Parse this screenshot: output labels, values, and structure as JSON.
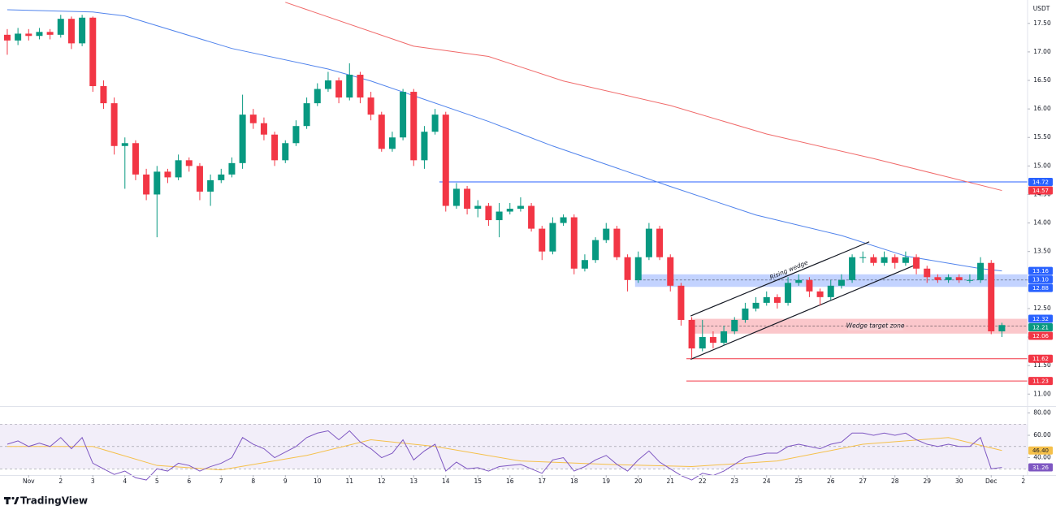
{
  "header": {
    "currency": "USDT"
  },
  "chart_data": [
    {
      "type": "candlestick",
      "open": [
        17.3,
        17.2,
        17.32,
        17.28,
        17.35,
        17.3,
        17.58,
        17.15,
        17.6,
        16.4,
        16.1,
        15.35,
        15.4,
        14.85,
        14.5,
        14.9,
        14.8,
        15.1,
        15.0,
        14.55,
        14.75,
        14.85,
        15.05,
        15.9,
        15.75,
        15.55,
        15.1,
        15.4,
        15.7,
        16.1,
        16.35,
        16.5,
        16.2,
        16.6,
        16.2,
        15.9,
        15.3,
        15.5,
        16.3,
        15.1,
        15.6,
        15.9,
        14.3,
        14.6,
        14.25,
        14.3,
        14.05,
        14.2,
        14.25,
        14.3,
        13.9,
        13.5,
        14.0,
        14.1,
        13.2,
        13.35,
        13.7,
        13.9,
        13.4,
        13.0,
        13.4,
        13.9,
        13.4,
        12.9,
        12.3,
        11.8,
        12.0,
        11.9,
        12.1,
        12.3,
        12.5,
        12.6,
        12.7,
        12.6,
        12.95,
        13.0,
        12.8,
        12.7,
        12.9,
        13.0,
        13.4,
        13.4,
        13.3,
        13.4,
        13.3,
        13.4,
        13.2,
        13.05,
        13.0,
        13.05,
        13.0,
        13.0,
        13.3,
        12.1
      ],
      "high": [
        17.4,
        17.42,
        17.4,
        17.42,
        17.4,
        17.65,
        17.62,
        17.65,
        17.62,
        16.5,
        16.2,
        15.5,
        15.45,
        14.95,
        15.0,
        14.95,
        15.2,
        15.15,
        15.05,
        14.85,
        14.95,
        15.15,
        16.25,
        16.0,
        15.85,
        15.6,
        15.45,
        15.8,
        16.2,
        16.45,
        16.65,
        16.55,
        16.8,
        16.65,
        16.3,
        15.95,
        15.6,
        16.35,
        16.35,
        15.7,
        16.0,
        15.95,
        14.7,
        14.65,
        14.4,
        14.35,
        14.35,
        14.35,
        14.45,
        14.35,
        13.95,
        14.1,
        14.15,
        14.15,
        13.45,
        13.75,
        14.0,
        13.95,
        13.45,
        13.5,
        14.0,
        13.95,
        13.45,
        12.95,
        12.35,
        12.3,
        12.1,
        12.2,
        12.35,
        12.6,
        12.7,
        12.8,
        12.75,
        13.05,
        13.1,
        13.05,
        12.85,
        13.0,
        13.1,
        13.45,
        13.5,
        13.45,
        13.5,
        13.45,
        13.5,
        13.45,
        13.25,
        13.1,
        13.1,
        13.1,
        13.1,
        13.4,
        13.35,
        12.25
      ],
      "low": [
        16.95,
        17.12,
        17.2,
        17.22,
        17.22,
        17.25,
        17.05,
        17.1,
        16.3,
        16.0,
        15.2,
        14.6,
        14.75,
        14.4,
        13.75,
        14.7,
        14.75,
        14.9,
        14.4,
        14.3,
        14.7,
        14.8,
        14.95,
        15.65,
        15.45,
        15.0,
        15.05,
        15.35,
        15.65,
        16.05,
        16.3,
        16.1,
        16.15,
        16.1,
        15.8,
        15.25,
        15.25,
        15.45,
        15.0,
        14.95,
        15.55,
        14.2,
        14.25,
        14.15,
        14.1,
        13.95,
        13.75,
        14.15,
        14.2,
        13.85,
        13.35,
        13.45,
        13.95,
        13.1,
        13.15,
        13.3,
        13.65,
        13.35,
        12.8,
        12.95,
        13.35,
        13.35,
        12.8,
        12.2,
        11.62,
        11.75,
        11.8,
        11.85,
        12.05,
        12.25,
        12.45,
        12.55,
        12.5,
        12.55,
        12.9,
        12.7,
        12.55,
        12.65,
        12.85,
        12.95,
        13.3,
        13.25,
        13.25,
        13.2,
        13.25,
        13.1,
        12.95,
        12.95,
        12.95,
        12.95,
        12.95,
        12.95,
        12.05,
        12.0
      ],
      "close": [
        17.2,
        17.32,
        17.28,
        17.35,
        17.3,
        17.58,
        17.15,
        17.6,
        16.4,
        16.1,
        15.35,
        15.4,
        14.85,
        14.5,
        14.9,
        14.8,
        15.1,
        15.0,
        14.55,
        14.75,
        14.85,
        15.05,
        15.9,
        15.75,
        15.55,
        15.1,
        15.4,
        15.7,
        16.1,
        16.35,
        16.5,
        16.2,
        16.6,
        16.2,
        15.9,
        15.3,
        15.5,
        16.3,
        15.1,
        15.6,
        15.9,
        14.3,
        14.6,
        14.25,
        14.3,
        14.05,
        14.2,
        14.25,
        14.3,
        13.9,
        13.5,
        14.0,
        14.1,
        13.2,
        13.35,
        13.7,
        13.9,
        13.4,
        13.0,
        13.4,
        13.9,
        13.4,
        12.9,
        12.3,
        11.8,
        12.0,
        11.9,
        12.1,
        12.3,
        12.5,
        12.6,
        12.7,
        12.6,
        12.95,
        13.0,
        12.8,
        12.7,
        12.9,
        13.0,
        13.4,
        13.4,
        13.3,
        13.4,
        13.3,
        13.4,
        13.2,
        13.05,
        13.0,
        13.05,
        13.0,
        13.0,
        13.3,
        12.1,
        12.21
      ],
      "up_color": "#089981",
      "down_color": "#f23645",
      "last_price_color": "#089981",
      "xlim": [
        -0.68,
        95.4
      ],
      "xticks": [
        {
          "value": 2,
          "label": "Nov"
        },
        {
          "value": 5,
          "label": "2"
        },
        {
          "value": 8,
          "label": "3"
        },
        {
          "value": 11,
          "label": "4"
        },
        {
          "value": 14,
          "label": "5"
        },
        {
          "value": 17,
          "label": "6"
        },
        {
          "value": 20,
          "label": "7"
        },
        {
          "value": 23,
          "label": "8"
        },
        {
          "value": 26,
          "label": "9"
        },
        {
          "value": 29,
          "label": "10"
        },
        {
          "value": 32,
          "label": "11"
        },
        {
          "value": 35,
          "label": "12"
        },
        {
          "value": 38,
          "label": "13"
        },
        {
          "value": 41,
          "label": "14"
        },
        {
          "value": 44,
          "label": "15"
        },
        {
          "value": 47,
          "label": "16"
        },
        {
          "value": 50,
          "label": "17"
        },
        {
          "value": 53,
          "label": "18"
        },
        {
          "value": 56,
          "label": "19"
        },
        {
          "value": 59,
          "label": "20"
        },
        {
          "value": 62,
          "label": "21"
        },
        {
          "value": 65,
          "label": "22"
        },
        {
          "value": 68,
          "label": "23"
        },
        {
          "value": 71,
          "label": "24"
        },
        {
          "value": 74,
          "label": "25"
        },
        {
          "value": 77,
          "label": "26"
        },
        {
          "value": 80,
          "label": "27"
        },
        {
          "value": 83,
          "label": "28"
        },
        {
          "value": 86,
          "label": "29"
        },
        {
          "value": 89,
          "label": "30"
        },
        {
          "value": 92,
          "label": "Dec"
        },
        {
          "value": 95,
          "label": "2"
        }
      ],
      "ylim": [
        10.79,
        17.91
      ],
      "yticks": [
        {
          "value": 17.5,
          "label": "17.50"
        },
        {
          "value": 17,
          "label": "17.00"
        },
        {
          "value": 16.5,
          "label": "16.50"
        },
        {
          "value": 16,
          "label": "16.00"
        },
        {
          "value": 15.5,
          "label": "15.50"
        },
        {
          "value": 15,
          "label": "15.00"
        },
        {
          "value": 14.5,
          "label": "14.50"
        },
        {
          "value": 14,
          "label": "14.00"
        },
        {
          "value": 13.5,
          "label": "13.50"
        },
        {
          "value": 13,
          "label": "13.00"
        },
        {
          "value": 12.5,
          "label": "12.50"
        },
        {
          "value": 12,
          "label": "12.00"
        },
        {
          "value": 11.5,
          "label": "11.50"
        },
        {
          "value": 11,
          "label": "11.00"
        }
      ],
      "moving_averages": [
        {
          "color": "#5083ec",
          "badge_color": "#2962ff",
          "x": [
            0,
            8,
            11,
            21,
            30,
            34,
            45,
            51,
            62,
            70,
            78,
            84,
            91,
            93
          ],
          "values": [
            17.74,
            17.7,
            17.63,
            17.06,
            16.7,
            16.49,
            15.78,
            15.35,
            14.64,
            14.14,
            13.78,
            13.42,
            13.2,
            13.16
          ]
        },
        {
          "color": "#f06a6a",
          "badge_color": "#f23645",
          "x": [
            26,
            38,
            45,
            52,
            62,
            71,
            81,
            87,
            93
          ],
          "values": [
            17.87,
            17.1,
            16.92,
            16.49,
            16.06,
            15.56,
            15.13,
            14.85,
            14.57
          ]
        }
      ],
      "levels": [
        {
          "value": 14.72,
          "from": 40.4,
          "color": "#2962ff"
        },
        {
          "value": 11.62,
          "from": 63.5,
          "color": "#f23645"
        },
        {
          "value": 11.23,
          "from": 63.5,
          "color": "#f23645"
        }
      ],
      "zones": [
        {
          "top": {
            "value": 13.1,
            "label": "13.10"
          },
          "bottom": 12.88,
          "mid": 13,
          "from": 58.7,
          "fill": "rgba(41,98,255,0.28)",
          "color": "#2962ff"
        },
        {
          "top": 12.32,
          "bottom": 12.06,
          "mid": 12.19,
          "from": 63.9,
          "label": "Wedge target zone",
          "fill": "rgba(242,54,69,0.28)",
          "color": "#f23645",
          "top_color": "#2962ff"
        }
      ],
      "wedge": {
        "label": "Rising wedge",
        "upper": {
          "x": [
            63.9,
            80.6
          ],
          "values": [
            12.37,
            13.67
          ]
        },
        "lower": {
          "x": [
            63.9,
            85.1
          ],
          "values": [
            11.61,
            13.28
          ]
        }
      }
    },
    {
      "type": "line",
      "ylim": [
        24.4,
        84
      ],
      "yticks": [
        {
          "value": 80,
          "label": "80.00"
        },
        {
          "value": 60,
          "label": "60.00"
        },
        {
          "value": 40,
          "label": "40.00"
        }
      ],
      "bands": [
        30,
        50,
        70
      ],
      "band_fill": "rgba(126,87,194,0.10)",
      "color": "#7e57c2",
      "values": [
        52,
        55,
        50,
        53,
        50,
        58,
        48,
        58,
        35,
        30,
        25,
        28,
        22,
        20,
        30,
        28,
        35,
        33,
        28,
        32,
        35,
        40,
        58,
        52,
        48,
        40,
        45,
        50,
        58,
        62,
        64,
        56,
        64,
        54,
        48,
        40,
        44,
        56,
        38,
        46,
        52,
        28,
        36,
        30,
        31,
        28,
        32,
        33,
        34,
        30,
        26,
        38,
        40,
        28,
        32,
        38,
        42,
        34,
        28,
        38,
        46,
        36,
        30,
        24,
        20,
        26,
        24,
        28,
        34,
        40,
        42,
        44,
        44,
        50,
        52,
        50,
        48,
        52,
        54,
        62,
        62,
        60,
        62,
        60,
        62,
        56,
        52,
        50,
        52,
        50,
        50,
        58,
        30,
        31.26
      ],
      "ma": {
        "color": "#f5c04a",
        "x": [
          0,
          8,
          14,
          20,
          28,
          34,
          40,
          48,
          56,
          64,
          72,
          80,
          88,
          93
        ],
        "values": [
          50,
          50,
          33,
          29,
          42,
          56,
          50,
          37,
          34,
          32,
          37,
          52,
          58,
          46.4
        ],
        "value_labels": [
          null,
          null,
          null,
          null,
          null,
          null,
          null,
          null,
          null,
          null,
          null,
          null,
          null,
          "46.40"
        ]
      }
    }
  ],
  "footer": {
    "brand": "TradingView"
  }
}
